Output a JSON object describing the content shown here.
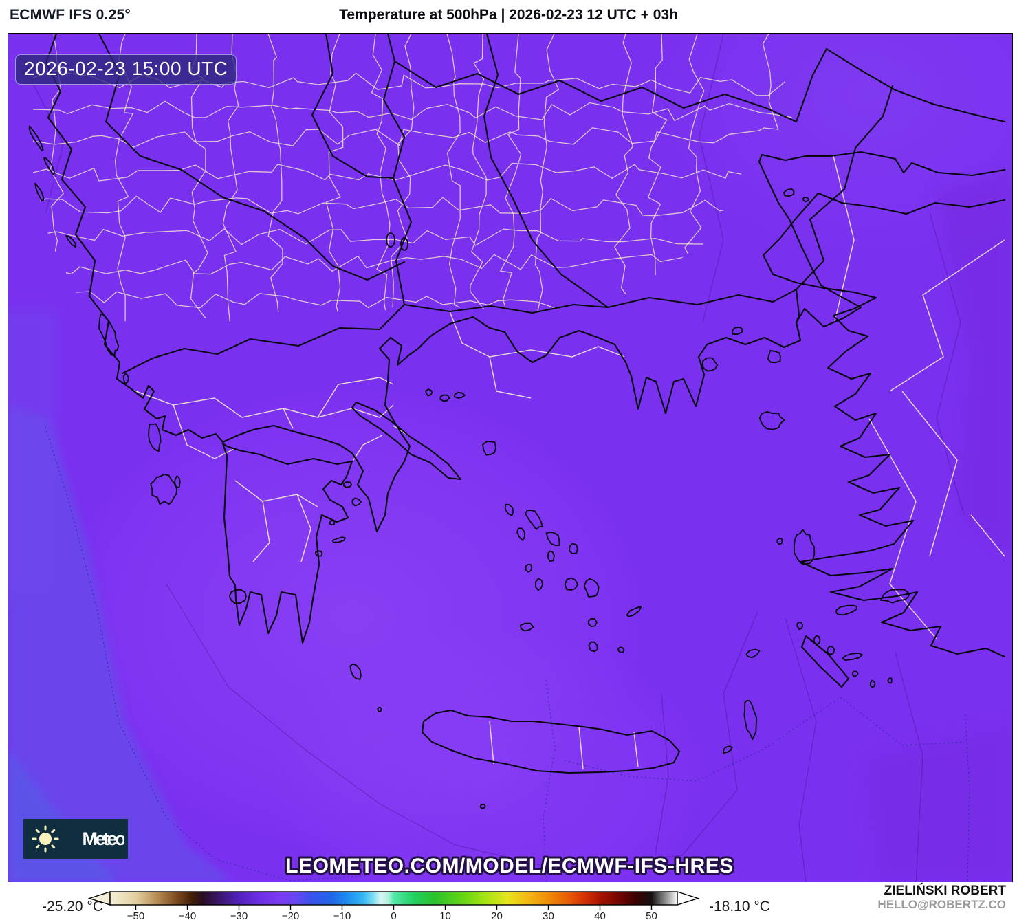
{
  "header": {
    "model_label": "ECMWF IFS 0.25°",
    "title": "Temperature at 500hPa | 2026-02-23 12 UTC + 03h"
  },
  "map": {
    "timestamp": "2026-02-23 15:00 UTC",
    "watermark": "LEOMETEO.COM/MODEL/ECMWF-IFS-HRES",
    "logo_text": "Meteo",
    "base_color": "#7a30ef",
    "coastline_color": "#07070f",
    "admin_line_color": "#f0e9d0"
  },
  "footer": {
    "attribution_name": "ZIELIŃSKI ROBERT",
    "attribution_email": "HELLO@ROBERTZ.CO"
  },
  "colorbar": {
    "min_label": "-25.20 °C",
    "max_label": "-18.10 °C",
    "unit": "°C",
    "range": [
      -55,
      55
    ],
    "ticks": [
      {
        "v": -50,
        "label": "−50"
      },
      {
        "v": -40,
        "label": "−40"
      },
      {
        "v": -30,
        "label": "−30"
      },
      {
        "v": -20,
        "label": "−20"
      },
      {
        "v": -10,
        "label": "−10"
      },
      {
        "v": 0,
        "label": "0"
      },
      {
        "v": 10,
        "label": "10"
      },
      {
        "v": 20,
        "label": "20"
      },
      {
        "v": 30,
        "label": "30"
      },
      {
        "v": 40,
        "label": "40"
      },
      {
        "v": 50,
        "label": "50"
      }
    ],
    "stops": [
      {
        "v": -55,
        "c": "#f5efd8"
      },
      {
        "v": -50,
        "c": "#e2cfa0"
      },
      {
        "v": -46,
        "c": "#b98e55"
      },
      {
        "v": -42,
        "c": "#7a4a1d"
      },
      {
        "v": -39,
        "c": "#3f1d06"
      },
      {
        "v": -37,
        "c": "#2a0d23"
      },
      {
        "v": -34,
        "c": "#3a1566"
      },
      {
        "v": -30,
        "c": "#5220bb"
      },
      {
        "v": -26,
        "c": "#6c2fe4"
      },
      {
        "v": -22,
        "c": "#7b3bf2"
      },
      {
        "v": -19,
        "c": "#6747f0"
      },
      {
        "v": -16,
        "c": "#3a52ec"
      },
      {
        "v": -12,
        "c": "#2166e8"
      },
      {
        "v": -9,
        "c": "#1e8ef0"
      },
      {
        "v": -6,
        "c": "#35b5f2"
      },
      {
        "v": -4,
        "c": "#7adcf2"
      },
      {
        "v": -2.5,
        "c": "#d8f4f4"
      },
      {
        "v": -1,
        "c": "#aff0dc"
      },
      {
        "v": 0,
        "c": "#52e8a8"
      },
      {
        "v": 4,
        "c": "#22d060"
      },
      {
        "v": 8,
        "c": "#2bc22b"
      },
      {
        "v": 13,
        "c": "#5fd415"
      },
      {
        "v": 18,
        "c": "#a8e414"
      },
      {
        "v": 22,
        "c": "#e6e41c"
      },
      {
        "v": 26,
        "c": "#f2b814"
      },
      {
        "v": 30,
        "c": "#ef8c0a"
      },
      {
        "v": 34,
        "c": "#e65a04"
      },
      {
        "v": 37,
        "c": "#d43202"
      },
      {
        "v": 40,
        "c": "#a81400"
      },
      {
        "v": 44,
        "c": "#6e0400"
      },
      {
        "v": 47,
        "c": "#3a0200"
      },
      {
        "v": 50,
        "c": "#151010"
      },
      {
        "v": 52,
        "c": "#6e6e6e"
      },
      {
        "v": 54,
        "c": "#c8c8c8"
      },
      {
        "v": 55,
        "c": "#ffffff"
      }
    ]
  }
}
